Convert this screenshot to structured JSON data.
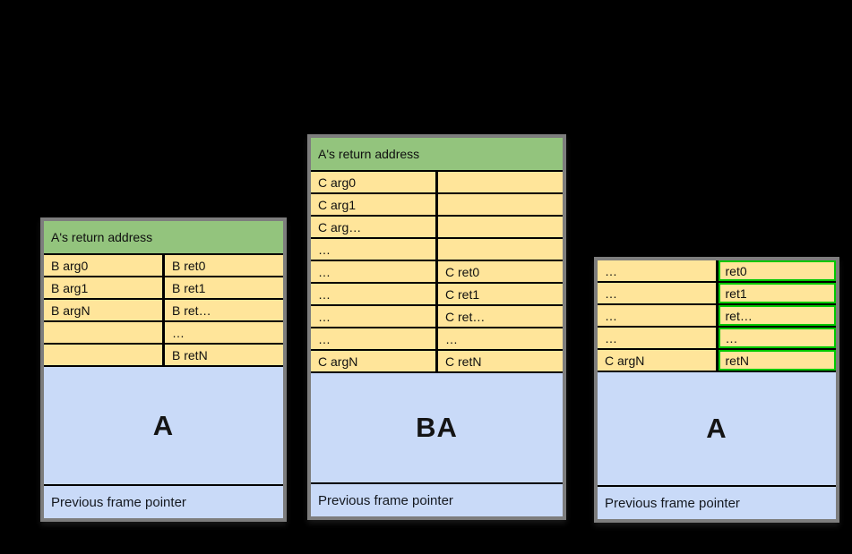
{
  "background": "#000000",
  "colors": {
    "table_outer_border": "#7d7d7d",
    "cell_divider": "#000000",
    "header_green": "#93c47d",
    "cell_yellow": "#ffe59a",
    "frame_blue": "#c9daf8",
    "highlight_green_border": "#00c800",
    "text_dark": "#0f0f0f"
  },
  "tables": [
    {
      "name": "left-stack",
      "header": "A's return address",
      "rows": [
        [
          "B arg0",
          "B ret0"
        ],
        [
          "B arg1",
          "B ret1"
        ],
        [
          "B argN",
          "B ret…"
        ],
        [
          "",
          "…"
        ],
        [
          "",
          "B retN"
        ]
      ],
      "frame_label": "A",
      "footer": "Previous frame pointer"
    },
    {
      "name": "middle-stack",
      "header": "A's return address",
      "rows": [
        [
          "C arg0",
          ""
        ],
        [
          "C arg1",
          ""
        ],
        [
          "C arg…",
          ""
        ],
        [
          "…",
          ""
        ],
        [
          "…",
          "C ret0"
        ],
        [
          "…",
          "C ret1"
        ],
        [
          "…",
          "C ret…"
        ],
        [
          "…",
          "…"
        ],
        [
          "C argN",
          "C retN"
        ]
      ],
      "frame_label": "BA",
      "footer": "Previous frame pointer"
    },
    {
      "name": "right-stack",
      "rows": [
        [
          "…",
          "ret0"
        ],
        [
          "…",
          "ret1"
        ],
        [
          "…",
          "ret…"
        ],
        [
          "…",
          "…"
        ],
        [
          "C argN",
          "retN"
        ]
      ],
      "highlighted_column": "right",
      "frame_label": "A",
      "footer": "Previous frame pointer"
    }
  ]
}
